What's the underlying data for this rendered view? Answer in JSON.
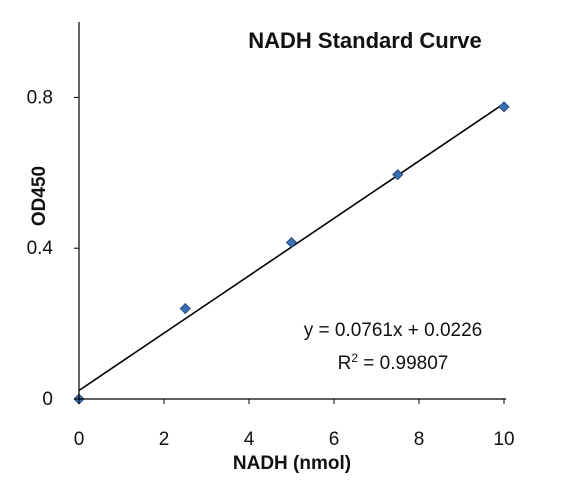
{
  "chart_data": {
    "type": "scatter",
    "title": "NADH Standard Curve",
    "xlabel": "NADH (nmol)",
    "ylabel": "OD450",
    "xlim": [
      0,
      10
    ],
    "ylim": [
      0,
      1
    ],
    "xticks": [
      "0",
      "2",
      "4",
      "6",
      "8",
      "10"
    ],
    "yticks": [
      "0",
      "0.4",
      "0.8"
    ],
    "points": [
      {
        "x": 0,
        "y": 0.0
      },
      {
        "x": 2.5,
        "y": 0.24
      },
      {
        "x": 5,
        "y": 0.415
      },
      {
        "x": 7.5,
        "y": 0.595
      },
      {
        "x": 10,
        "y": 0.775
      }
    ],
    "trendline": {
      "slope": 0.0761,
      "intercept": 0.0226
    },
    "equation": "y = 0.0761x + 0.0226",
    "r_squared_prefix": "R",
    "r_squared_sup": "2",
    "r_squared_value": " = 0.99807",
    "grid": false,
    "legend": "none",
    "marker_color": "#3a6fb4",
    "line_color": "#000000"
  }
}
